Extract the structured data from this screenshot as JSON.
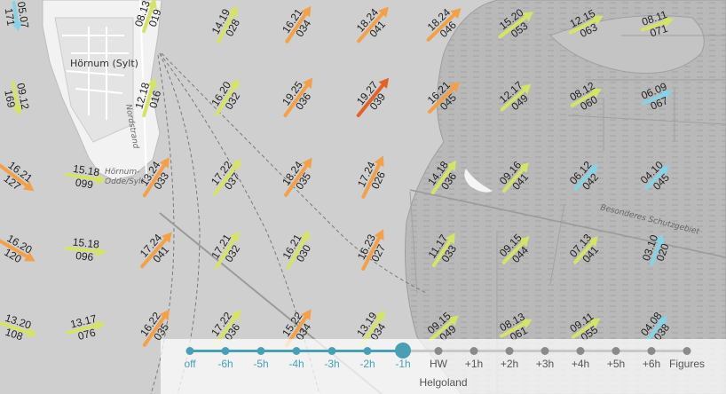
{
  "map": {
    "places": [
      "Hörnum (Sylt)",
      "Hörnum-",
      "Odde/Sylt",
      "Nordstrand",
      "Besonderes Schutzgebiet"
    ],
    "colors": {
      "water": "#cfcfcf",
      "land": "#f2f2f2",
      "mudflat": "#b8b8b8",
      "slow": "#86d3e8",
      "medium": "#d6e36a",
      "fast": "#f2a04a",
      "fastest": "#e0642a"
    },
    "arrows": [
      {
        "label": "05.07",
        "dir": "171",
        "color": "slow"
      },
      {
        "label": "08.13",
        "dir": "019",
        "color": "medium"
      },
      {
        "label": "14.19",
        "dir": "028",
        "color": "medium"
      },
      {
        "label": "16.21",
        "dir": "034",
        "color": "fast"
      },
      {
        "label": "18.24",
        "dir": "041",
        "color": "fast"
      },
      {
        "label": "18.24",
        "dir": "046",
        "color": "fast"
      },
      {
        "label": "15.20",
        "dir": "053",
        "color": "medium"
      },
      {
        "label": "12.15",
        "dir": "063",
        "color": "medium"
      },
      {
        "label": "08.11",
        "dir": "071",
        "color": "medium"
      },
      {
        "label": "09.12",
        "dir": "169",
        "color": "medium"
      },
      {
        "label": "12.18",
        "dir": "016",
        "color": "medium"
      },
      {
        "label": "16.20",
        "dir": "032",
        "color": "medium"
      },
      {
        "label": "19.25",
        "dir": "036",
        "color": "fast"
      },
      {
        "label": "19.27",
        "dir": "039",
        "color": "fastest"
      },
      {
        "label": "16.21",
        "dir": "045",
        "color": "fast"
      },
      {
        "label": "12.17",
        "dir": "049",
        "color": "medium"
      },
      {
        "label": "08.12",
        "dir": "060",
        "color": "medium"
      },
      {
        "label": "06.09",
        "dir": "067",
        "color": "slow"
      },
      {
        "label": "16.21",
        "dir": "127",
        "color": "fast"
      },
      {
        "label": "15.18",
        "dir": "099",
        "color": "medium"
      },
      {
        "label": "13.24",
        "dir": "033",
        "color": "fast"
      },
      {
        "label": "17.22",
        "dir": "037",
        "color": "medium"
      },
      {
        "label": "18.24",
        "dir": "035",
        "color": "fast"
      },
      {
        "label": "17.24",
        "dir": "026",
        "color": "fast"
      },
      {
        "label": "14.18",
        "dir": "036",
        "color": "medium"
      },
      {
        "label": "09.16",
        "dir": "041",
        "color": "medium"
      },
      {
        "label": "06.12",
        "dir": "042",
        "color": "slow"
      },
      {
        "label": "04.10",
        "dir": "045",
        "color": "slow"
      },
      {
        "label": "16.20",
        "dir": "120",
        "color": "fast"
      },
      {
        "label": "15.18",
        "dir": "096",
        "color": "medium"
      },
      {
        "label": "17.24",
        "dir": "041",
        "color": "fast"
      },
      {
        "label": "17.21",
        "dir": "032",
        "color": "medium"
      },
      {
        "label": "16.21",
        "dir": "030",
        "color": "medium"
      },
      {
        "label": "16.23",
        "dir": "027",
        "color": "fast"
      },
      {
        "label": "11.17",
        "dir": "033",
        "color": "medium"
      },
      {
        "label": "09.15",
        "dir": "044",
        "color": "medium"
      },
      {
        "label": "07.13",
        "dir": "041",
        "color": "medium"
      },
      {
        "label": "03.10",
        "dir": "020",
        "color": "slow"
      },
      {
        "label": "13.20",
        "dir": "108",
        "color": "medium"
      },
      {
        "label": "13.17",
        "dir": "076",
        "color": "medium"
      },
      {
        "label": "16.22",
        "dir": "035",
        "color": "fast"
      },
      {
        "label": "17.22",
        "dir": "036",
        "color": "medium"
      },
      {
        "label": "15.22",
        "dir": "034",
        "color": "fast"
      },
      {
        "label": "13.19",
        "dir": "034",
        "color": "medium"
      },
      {
        "label": "09.15",
        "dir": "049",
        "color": "medium"
      },
      {
        "label": "08.13",
        "dir": "061",
        "color": "medium"
      },
      {
        "label": "09.11",
        "dir": "055",
        "color": "medium"
      },
      {
        "label": "04.08",
        "dir": "038",
        "color": "slow"
      }
    ]
  },
  "timebar": {
    "steps": [
      "off",
      "-6h",
      "-5h",
      "-4h",
      "-3h",
      "-2h",
      "-1h",
      "HW",
      "+1h",
      "+2h",
      "+3h",
      "+4h",
      "+5h",
      "+6h",
      "Figures"
    ],
    "active_index": 6,
    "reference": "Helgoland",
    "colors": {
      "accent": "#4a9fb5",
      "inactive": "#8a8a8a"
    }
  }
}
